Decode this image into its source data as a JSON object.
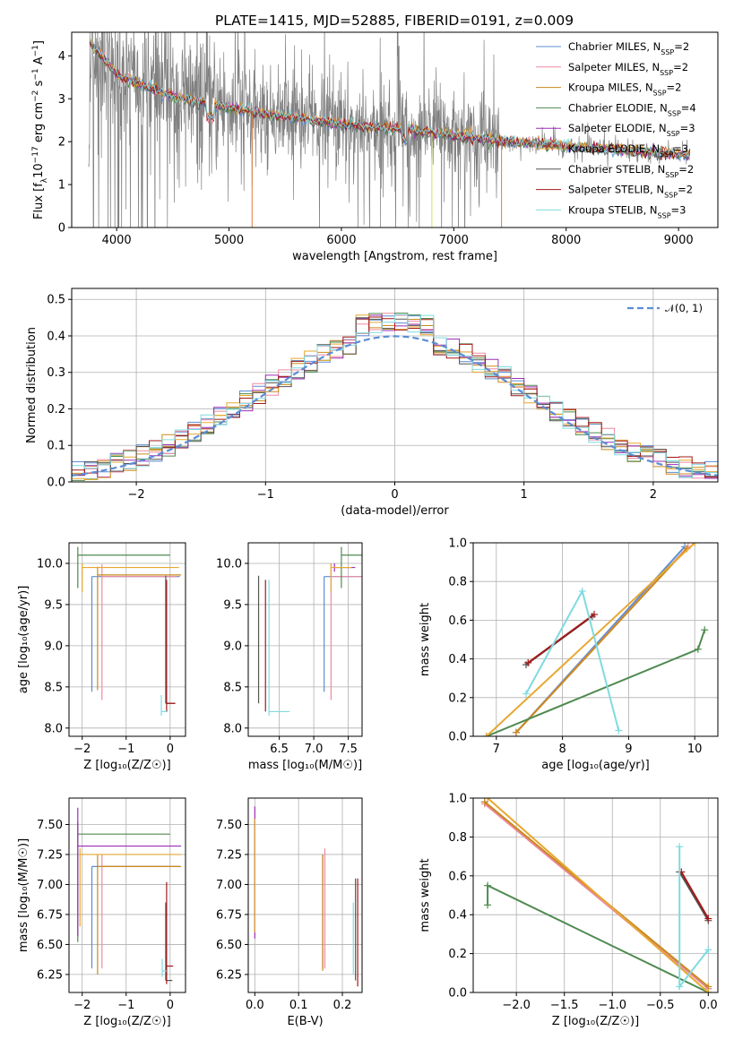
{
  "figure": {
    "title": "PLATE=1415, MJD=52885, FIBERID=0191, z=0.009"
  },
  "models": [
    {
      "name": "Chabrier MILES",
      "nssp": "2",
      "color": "#5b8dd4"
    },
    {
      "name": "Salpeter MILES",
      "nssp": "2",
      "color": "#f08aa0"
    },
    {
      "name": "Kroupa MILES",
      "nssp": "2",
      "color": "#c98a1e"
    },
    {
      "name": "Chabrier ELODIE",
      "nssp": "4",
      "color": "#4f8a4f"
    },
    {
      "name": "Salpeter ELODIE",
      "nssp": "3",
      "color": "#9b2fb5"
    },
    {
      "name": "Kroupa ELODIE",
      "nssp": "3",
      "color": "#e6a832"
    },
    {
      "name": "Chabrier STELIB",
      "nssp": "2",
      "color": "#555555"
    },
    {
      "name": "Salpeter STELIB",
      "nssp": "2",
      "color": "#a51818"
    },
    {
      "name": "Kroupa STELIB",
      "nssp": "3",
      "color": "#7fdbe0"
    }
  ],
  "chart_data": [
    {
      "id": "spectrum",
      "type": "line",
      "xlabel": "wavelength [Angstrom, rest frame]",
      "ylabel_parts": [
        "Flux [f",
        "λ",
        "10",
        "−17",
        " erg cm",
        "−2",
        " s",
        "−1",
        " A",
        "−1",
        "]"
      ],
      "xlim": [
        3600,
        9350
      ],
      "ylim": [
        0,
        4.55
      ],
      "xticks": [
        4000,
        5000,
        6000,
        7000,
        8000,
        9000
      ],
      "yticks": [
        0,
        1,
        2,
        3,
        4
      ],
      "legend_loc": "upper right",
      "legend_entry_format": "{name}, N_SSP={nssp}",
      "data_color": "#808080",
      "data_range": [
        3750,
        9100
      ],
      "model_continuum": {
        "x": [
          3760,
          3900,
          4000,
          4200,
          4500,
          4800,
          5000,
          5300,
          5600,
          6000,
          6500,
          7000,
          7500,
          8000,
          8500,
          9000,
          9100
        ],
        "y": [
          4.3,
          3.9,
          3.55,
          3.35,
          3.05,
          2.9,
          2.8,
          2.65,
          2.55,
          2.4,
          2.3,
          2.15,
          2.0,
          1.9,
          1.8,
          1.7,
          1.68
        ]
      }
    },
    {
      "id": "residuals",
      "type": "step",
      "xlabel": "(data-model)/error",
      "ylabel": "Normed distribution",
      "xlim": [
        -2.5,
        2.5
      ],
      "ylim": [
        0,
        0.53
      ],
      "xticks": [
        -2,
        -1,
        0,
        1,
        2
      ],
      "yticks": [
        0.0,
        0.1,
        0.2,
        0.3,
        0.4,
        0.5
      ],
      "grid": true,
      "legend_loc": "upper right",
      "gauss_label": "𝒩(0, 1)",
      "gauss_color": "#5b8dd4",
      "bin_width": 0.1
    },
    {
      "id": "age-vs-Z",
      "type": "errorbar",
      "xlabel": "Z [log₁₀(Z/Z☉)]",
      "ylabel": "age  [log₁₀(age/yr)]",
      "xlim": [
        -2.3,
        0.35
      ],
      "ylim": [
        7.9,
        10.25
      ],
      "xticks": [
        -2,
        -1,
        0
      ],
      "yticks": [
        8.0,
        8.5,
        9.0,
        9.5,
        10.0
      ],
      "grid": true,
      "points": [
        {
          "model": 0,
          "x": -1.78,
          "y": 9.84,
          "xerr": 2.0,
          "yerr": [
            1.4,
            0.0
          ]
        },
        {
          "model": 1,
          "x": -1.55,
          "y": 9.84,
          "xerr": 1.7,
          "yerr": [
            1.5,
            0.15
          ]
        },
        {
          "model": 2,
          "x": -1.65,
          "y": 9.86,
          "xerr": 1.9,
          "yerr": [
            1.4,
            0.1
          ]
        },
        {
          "model": 3,
          "x": -2.1,
          "y": 10.1,
          "xerr": 2.1,
          "yerr": [
            0.4,
            0.1
          ]
        },
        {
          "model": 5,
          "x": -2.0,
          "y": 9.95,
          "xerr": 2.2,
          "yerr": [
            0.3,
            0.05
          ]
        },
        {
          "model": 6,
          "x": -0.1,
          "y": 8.3,
          "xerr": 0.2,
          "yerr": [
            0.0,
            1.55
          ]
        },
        {
          "model": 7,
          "x": -0.08,
          "y": 8.3,
          "xerr": 0.2,
          "yerr": [
            0.1,
            1.5
          ]
        },
        {
          "model": 8,
          "x": -0.2,
          "y": 8.2,
          "xerr": 0.15,
          "yerr": [
            0.05,
            0.2
          ]
        }
      ]
    },
    {
      "id": "age-vs-mass",
      "type": "errorbar",
      "xlabel": "mass [log₁₀(M/M☉)]",
      "ylabel": "",
      "xlim": [
        6.05,
        7.7
      ],
      "ylim": [
        7.9,
        10.25
      ],
      "xticks": [
        6.5,
        7.0,
        7.5
      ],
      "yticks": [
        8.0,
        8.5,
        9.0,
        9.5,
        10.0
      ],
      "grid": true,
      "points": [
        {
          "model": 0,
          "x": 7.15,
          "y": 9.84,
          "xerr": 0.9,
          "yerr": [
            1.4,
            0.0
          ]
        },
        {
          "model": 1,
          "x": 7.25,
          "y": 9.84,
          "xerr": 0.9,
          "yerr": [
            1.5,
            0.15
          ]
        },
        {
          "model": 3,
          "x": 7.4,
          "y": 10.1,
          "xerr": 0.3,
          "yerr": [
            0.4,
            0.1
          ]
        },
        {
          "model": 4,
          "x": 7.3,
          "y": 9.95,
          "xerr": 0.3,
          "yerr": [
            0.05,
            0.05
          ]
        },
        {
          "model": 5,
          "x": 7.25,
          "y": 9.95,
          "xerr": 0.3,
          "yerr": [
            0.3,
            0.05
          ]
        },
        {
          "model": 6,
          "x": 6.2,
          "y": 8.3,
          "xerr": 0.0,
          "yerr": [
            0.0,
            1.55
          ]
        },
        {
          "model": 7,
          "x": 6.3,
          "y": 8.3,
          "xerr": 0.0,
          "yerr": [
            0.1,
            1.5
          ]
        },
        {
          "model": 8,
          "x": 6.35,
          "y": 8.2,
          "xerr": 0.3,
          "yerr": [
            0.05,
            1.6
          ]
        }
      ]
    },
    {
      "id": "massweight-vs-age",
      "type": "line",
      "xlabel": "age  [log₁₀(age/yr)]",
      "ylabel": "mass weight",
      "xlim": [
        6.65,
        10.35
      ],
      "ylim": [
        0,
        1.0
      ],
      "xticks": [
        7,
        8,
        9,
        10
      ],
      "yticks": [
        0.0,
        0.2,
        0.4,
        0.6,
        0.8,
        1.0
      ],
      "grid": true,
      "series": [
        {
          "model": 0,
          "x": [
            7.3,
            9.85
          ],
          "y": [
            0.02,
            0.98
          ]
        },
        {
          "model": 1,
          "x": [
            7.3,
            9.9
          ],
          "y": [
            0.02,
            0.98
          ]
        },
        {
          "model": 2,
          "x": [
            7.3,
            9.88
          ],
          "y": [
            0.02,
            0.97
          ]
        },
        {
          "model": 3,
          "x": [
            6.85,
            10.05,
            10.15
          ],
          "y": [
            0.0,
            0.45,
            0.55
          ]
        },
        {
          "model": 5,
          "x": [
            6.85,
            10.0
          ],
          "y": [
            0.0,
            1.0
          ]
        },
        {
          "model": 6,
          "x": [
            7.45,
            8.45
          ],
          "y": [
            0.37,
            0.62
          ]
        },
        {
          "model": 7,
          "x": [
            7.48,
            8.48
          ],
          "y": [
            0.38,
            0.63
          ]
        },
        {
          "model": 8,
          "x": [
            7.45,
            8.3,
            8.85
          ],
          "y": [
            0.22,
            0.75,
            0.03
          ]
        }
      ]
    },
    {
      "id": "mass-vs-Z",
      "type": "errorbar",
      "xlabel": "Z [log₁₀(Z/Z☉)]",
      "ylabel": "mass [log₁₀(M/M☉)]",
      "xlim": [
        -2.3,
        0.35
      ],
      "ylim": [
        6.1,
        7.72
      ],
      "xticks": [
        -2,
        -1,
        0
      ],
      "yticks": [
        6.25,
        6.5,
        6.75,
        7.0,
        7.25,
        7.5
      ],
      "grid": true,
      "points": [
        {
          "model": 0,
          "x": -1.78,
          "y": 7.15,
          "xerr": 2.0,
          "yerr": [
            0.85,
            0.0
          ]
        },
        {
          "model": 1,
          "x": -1.55,
          "y": 7.15,
          "xerr": 1.75,
          "yerr": [
            0.85,
            0.1
          ]
        },
        {
          "model": 2,
          "x": -1.65,
          "y": 7.15,
          "xerr": 1.9,
          "yerr": [
            0.9,
            0.1
          ]
        },
        {
          "model": 3,
          "x": -2.1,
          "y": 7.42,
          "xerr": 2.1,
          "yerr": [
            0.9,
            0.1
          ]
        },
        {
          "model": 4,
          "x": -2.1,
          "y": 7.32,
          "xerr": 2.35,
          "yerr": [
            0.75,
            0.32
          ]
        },
        {
          "model": 5,
          "x": -2.05,
          "y": 7.25,
          "xerr": 2.3,
          "yerr": [
            0.6,
            0.05
          ]
        },
        {
          "model": 6,
          "x": -0.1,
          "y": 6.2,
          "xerr": 0.15,
          "yerr": [
            0.0,
            0.65
          ]
        },
        {
          "model": 7,
          "x": -0.08,
          "y": 6.32,
          "xerr": 0.15,
          "yerr": [
            0.15,
            0.7
          ]
        },
        {
          "model": 8,
          "x": -0.18,
          "y": 6.28,
          "xerr": 0.1,
          "yerr": [
            0.05,
            0.1
          ]
        }
      ]
    },
    {
      "id": "mass-vs-EBV",
      "type": "errorbar",
      "xlabel": "E(B-V)",
      "ylabel": "",
      "xlim": [
        -0.015,
        0.245
      ],
      "ylim": [
        6.1,
        7.72
      ],
      "xticks": [
        0.0,
        0.1,
        0.2
      ],
      "yticks": [
        6.25,
        6.5,
        6.75,
        7.0,
        7.25,
        7.5
      ],
      "grid": true,
      "points": [
        {
          "model": 0,
          "x": 0.155,
          "y": 6.8,
          "xerr": 0.0,
          "yerr": [
            0.5,
            0.45
          ]
        },
        {
          "model": 1,
          "x": 0.16,
          "y": 6.8,
          "xerr": 0.0,
          "yerr": [
            0.5,
            0.5
          ]
        },
        {
          "model": 2,
          "x": 0.155,
          "y": 6.8,
          "xerr": 0.0,
          "yerr": [
            0.52,
            0.45
          ]
        },
        {
          "model": 3,
          "x": 0.0,
          "y": 7.0,
          "xerr": 0.0,
          "yerr": [
            0.4,
            0.55
          ]
        },
        {
          "model": 4,
          "x": 0.0,
          "y": 7.2,
          "xerr": 0.0,
          "yerr": [
            0.65,
            0.45
          ]
        },
        {
          "model": 5,
          "x": 0.0,
          "y": 7.0,
          "xerr": 0.0,
          "yerr": [
            0.4,
            0.55
          ]
        },
        {
          "model": 6,
          "x": 0.23,
          "y": 6.6,
          "xerr": 0.0,
          "yerr": [
            0.4,
            0.45
          ]
        },
        {
          "model": 7,
          "x": 0.235,
          "y": 6.6,
          "xerr": 0.0,
          "yerr": [
            0.45,
            0.45
          ]
        },
        {
          "model": 8,
          "x": 0.225,
          "y": 6.55,
          "xerr": 0.0,
          "yerr": [
            0.3,
            0.3
          ]
        }
      ]
    },
    {
      "id": "massweight-vs-Z",
      "type": "line",
      "xlabel": "Z [log₁₀(Z/Z☉)]",
      "ylabel": "mass weight",
      "xlim": [
        -2.45,
        0.1
      ],
      "ylim": [
        0,
        1.0
      ],
      "xticks": [
        -2.0,
        -1.5,
        -1.0,
        -0.5,
        0.0
      ],
      "yticks": [
        0.0,
        0.2,
        0.4,
        0.6,
        0.8,
        1.0
      ],
      "grid": true,
      "series": [
        {
          "model": 0,
          "x": [
            -2.33,
            0.0
          ],
          "y": [
            0.98,
            0.02
          ]
        },
        {
          "model": 1,
          "x": [
            -2.33,
            0.0
          ],
          "y": [
            0.97,
            0.02
          ]
        },
        {
          "model": 2,
          "x": [
            -2.33,
            0.0
          ],
          "y": [
            0.98,
            0.03
          ]
        },
        {
          "model": 3,
          "x": [
            -2.3,
            -2.3,
            0.0
          ],
          "y": [
            0.45,
            0.55,
            0.0
          ]
        },
        {
          "model": 5,
          "x": [
            -2.3,
            0.0
          ],
          "y": [
            1.0,
            0.0
          ]
        },
        {
          "model": 6,
          "x": [
            -0.3,
            0.0
          ],
          "y": [
            0.62,
            0.37
          ]
        },
        {
          "model": 7,
          "x": [
            -0.28,
            0.0
          ],
          "y": [
            0.62,
            0.38
          ]
        },
        {
          "model": 8,
          "x": [
            -0.3,
            -0.3,
            0.0
          ],
          "y": [
            0.75,
            0.03,
            0.22
          ]
        }
      ]
    }
  ]
}
